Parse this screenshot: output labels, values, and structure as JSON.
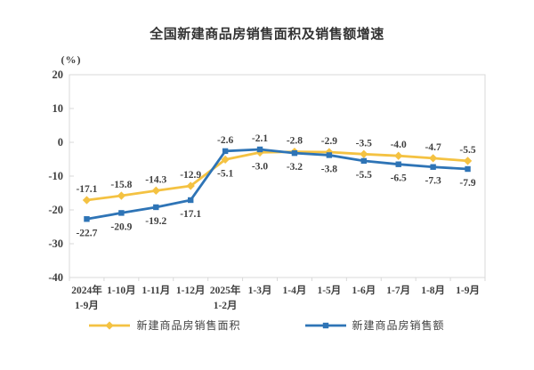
{
  "chart_data": {
    "type": "line",
    "title": "全国新建商品房销售面积及销售额增速",
    "unit_label": "(%)",
    "categories": [
      [
        "2024年",
        "1-9月"
      ],
      [
        "1-10月"
      ],
      [
        "1-11月"
      ],
      [
        "1-12月"
      ],
      [
        "2025年",
        "1-2月"
      ],
      [
        "1-3月"
      ],
      [
        "1-4月"
      ],
      [
        "1-5月"
      ],
      [
        "1-6月"
      ],
      [
        "1-7月"
      ],
      [
        "1-8月"
      ],
      [
        "1-9月"
      ]
    ],
    "series": [
      {
        "name": "新建商品房销售面积",
        "color": "#F4C242",
        "marker": "diamond",
        "values": [
          -17.1,
          -15.8,
          -14.3,
          -12.9,
          -5.1,
          -3.0,
          -2.8,
          -2.9,
          -3.5,
          -4.0,
          -4.7,
          -5.5
        ]
      },
      {
        "name": "新建商品房销售额",
        "color": "#2E74B6",
        "marker": "square",
        "values": [
          -22.7,
          -20.9,
          -19.2,
          -17.1,
          -2.6,
          -2.1,
          -3.2,
          -3.8,
          -5.5,
          -6.5,
          -7.3,
          -7.9
        ]
      }
    ],
    "ylim": [
      -40,
      20
    ],
    "ytick_step": 10,
    "grid": false,
    "legend_position": "bottom",
    "data_labels": true,
    "axis_color": "#D9D9D9",
    "text_color": "#3F3F3F"
  }
}
